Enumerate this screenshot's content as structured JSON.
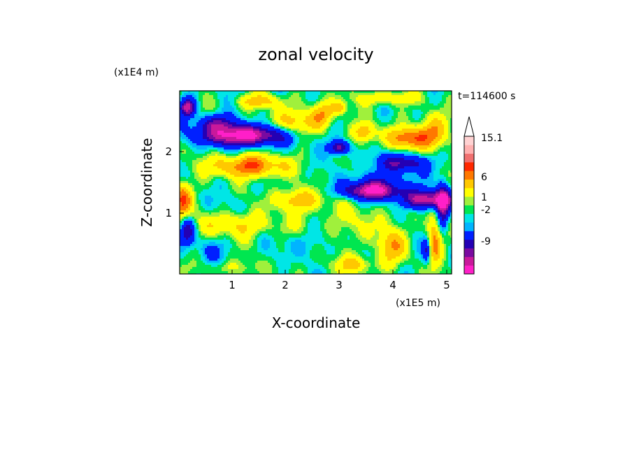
{
  "chart_data": {
    "type": "heatmap",
    "title": "zonal velocity",
    "time_label": "t=114600 s",
    "xlabel": "X-coordinate",
    "ylabel": "Z-coordinate",
    "x_scale_label": "(x1E5 m)",
    "y_scale_label": "(x1E4 m)",
    "xlim": [
      0,
      5.12
    ],
    "ylim": [
      0,
      2.97
    ],
    "x_ticks": [
      "1",
      "2",
      "3",
      "4",
      "5"
    ],
    "y_ticks": [
      "1",
      "2"
    ],
    "colorbar": {
      "levels": [
        -14,
        -11,
        -9,
        -7,
        -5,
        -2,
        -1,
        0,
        1,
        2,
        4,
        6,
        8,
        10,
        13,
        15.1
      ],
      "colors": [
        "#ff1fc8",
        "#c9199b",
        "#7a0aa0",
        "#2400b4",
        "#0020ff",
        "#00b4ff",
        "#00e6e6",
        "#00e650",
        "#a0f03c",
        "#ffff00",
        "#ffc800",
        "#ff7800",
        "#ff2800",
        "#f07070",
        "#ffb0b0",
        "#ffd2d2"
      ],
      "labels": [
        "15.1",
        "6",
        "1",
        "-2",
        "-9"
      ],
      "extend_top": true
    },
    "features": [
      {
        "x": 1.2,
        "z": 2.25,
        "sx": 0.55,
        "sz": 0.12,
        "u": -13
      },
      {
        "x": 0.15,
        "z": 2.7,
        "sx": 0.1,
        "sz": 0.1,
        "u": -10
      },
      {
        "x": 0.7,
        "z": 2.45,
        "sx": 0.25,
        "sz": 0.1,
        "u": -6
      },
      {
        "x": 1.3,
        "z": 1.75,
        "sx": 0.5,
        "sz": 0.13,
        "u": 8
      },
      {
        "x": 2.1,
        "z": 2.45,
        "sx": 0.35,
        "sz": 0.15,
        "u": 5
      },
      {
        "x": 2.7,
        "z": 2.6,
        "sx": 0.15,
        "sz": 0.15,
        "u": 6
      },
      {
        "x": 3.0,
        "z": 2.05,
        "sx": 0.13,
        "sz": 0.08,
        "u": -9
      },
      {
        "x": 3.0,
        "z": 2.7,
        "sx": 0.1,
        "sz": 0.08,
        "u": 5
      },
      {
        "x": 3.5,
        "z": 2.3,
        "sx": 0.15,
        "sz": 0.12,
        "u": 6
      },
      {
        "x": 3.65,
        "z": 1.35,
        "sx": 0.4,
        "sz": 0.1,
        "u": -12
      },
      {
        "x": 3.8,
        "z": 1.55,
        "sx": 0.35,
        "sz": 0.1,
        "u": -3
      },
      {
        "x": 4.2,
        "z": 1.8,
        "sx": 0.35,
        "sz": 0.1,
        "u": -7
      },
      {
        "x": 4.7,
        "z": 1.2,
        "sx": 0.35,
        "sz": 0.1,
        "u": -11
      },
      {
        "x": 4.3,
        "z": 2.2,
        "sx": 0.3,
        "sz": 0.12,
        "u": 7
      },
      {
        "x": 4.75,
        "z": 2.3,
        "sx": 0.2,
        "sz": 0.2,
        "u": 6
      },
      {
        "x": 4.95,
        "z": 1.05,
        "sx": 0.08,
        "sz": 0.3,
        "u": -9
      },
      {
        "x": 4.8,
        "z": 0.55,
        "sx": 0.12,
        "sz": 0.3,
        "u": 7
      },
      {
        "x": 4.65,
        "z": 0.4,
        "sx": 0.06,
        "sz": 0.15,
        "u": -7
      },
      {
        "x": 2.3,
        "z": 0.5,
        "sx": 0.35,
        "sz": 0.15,
        "u": -2
      },
      {
        "x": 2.7,
        "z": 0.8,
        "sx": 0.9,
        "sz": 0.35,
        "u": 1.2
      },
      {
        "x": 1.0,
        "z": 0.8,
        "sx": 0.5,
        "sz": 0.15,
        "u": 4
      },
      {
        "x": 0.05,
        "z": 1.2,
        "sx": 0.12,
        "sz": 0.2,
        "u": 8
      },
      {
        "x": 0.15,
        "z": 0.7,
        "sx": 0.1,
        "sz": 0.15,
        "u": -7
      },
      {
        "x": 2.2,
        "z": 1.2,
        "sx": 0.35,
        "sz": 0.12,
        "u": 5
      },
      {
        "x": 1.2,
        "z": 1.1,
        "sx": 0.4,
        "sz": 0.15,
        "u": -0.7
      },
      {
        "x": 3.5,
        "z": 0.9,
        "sx": 0.3,
        "sz": 0.2,
        "u": 1.3
      },
      {
        "x": 4.0,
        "z": 0.45,
        "sx": 0.2,
        "sz": 0.2,
        "u": 5
      },
      {
        "x": 0.6,
        "z": 0.4,
        "sx": 0.3,
        "sz": 0.15,
        "u": -1.5
      },
      {
        "x": 3.3,
        "z": 0.15,
        "sx": 0.3,
        "sz": 0.1,
        "u": 4
      },
      {
        "x": 1.0,
        "z": 0.1,
        "sx": 0.4,
        "sz": 0.08,
        "u": 2
      },
      {
        "x": 3.9,
        "z": 2.85,
        "sx": 0.4,
        "sz": 0.08,
        "u": 4
      },
      {
        "x": 1.5,
        "z": 2.8,
        "sx": 0.3,
        "sz": 0.08,
        "u": 5
      }
    ]
  }
}
